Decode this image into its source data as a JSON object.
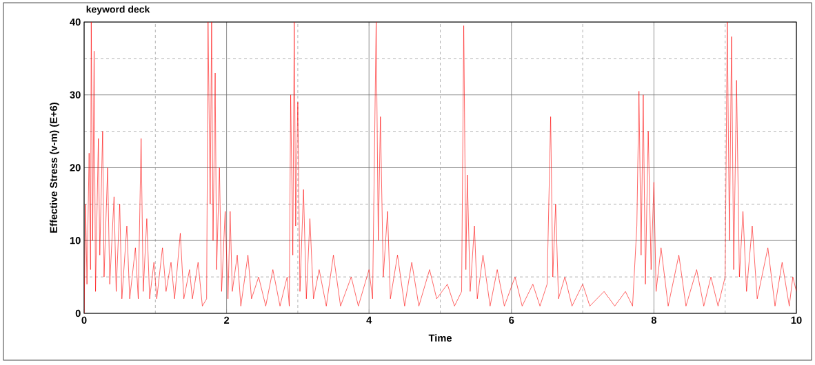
{
  "chart_data": {
    "type": "line",
    "title": "keyword deck",
    "xlabel": "Time",
    "ylabel": "Effective Stress (v-m) (E+6)",
    "xlim": [
      0,
      10
    ],
    "ylim": [
      0,
      40
    ],
    "xticks": [
      0,
      2,
      4,
      6,
      8,
      10
    ],
    "yticks": [
      0,
      10,
      20,
      30,
      40
    ],
    "grid": true,
    "series": [
      {
        "color": "#ff0000",
        "x": [
          0,
          0.02,
          0.04,
          0.07,
          0.09,
          0.1,
          0.12,
          0.14,
          0.16,
          0.2,
          0.22,
          0.26,
          0.28,
          0.33,
          0.36,
          0.42,
          0.45,
          0.5,
          0.53,
          0.6,
          0.64,
          0.72,
          0.76,
          0.8,
          0.83,
          0.88,
          0.92,
          0.98,
          1.02,
          1.1,
          1.15,
          1.22,
          1.27,
          1.35,
          1.4,
          1.48,
          1.52,
          1.6,
          1.66,
          1.72,
          1.74,
          1.77,
          1.79,
          1.81,
          1.84,
          1.86,
          1.9,
          1.93,
          1.98,
          2.02,
          2.05,
          2.08,
          2.15,
          2.2,
          2.3,
          2.35,
          2.45,
          2.55,
          2.65,
          2.75,
          2.85,
          2.88,
          2.9,
          2.93,
          2.95,
          2.97,
          3.0,
          3.03,
          3.08,
          3.12,
          3.17,
          3.22,
          3.3,
          3.4,
          3.5,
          3.6,
          3.75,
          3.85,
          4.0,
          4.05,
          4.1,
          4.13,
          4.16,
          4.2,
          4.26,
          4.3,
          4.4,
          4.5,
          4.6,
          4.7,
          4.85,
          4.95,
          5.1,
          5.2,
          5.3,
          5.33,
          5.36,
          5.38,
          5.42,
          5.48,
          5.52,
          5.6,
          5.7,
          5.8,
          5.9,
          6.05,
          6.15,
          6.3,
          6.4,
          6.5,
          6.55,
          6.58,
          6.62,
          6.66,
          6.75,
          6.85,
          7.0,
          7.1,
          7.3,
          7.45,
          7.6,
          7.7,
          7.76,
          7.79,
          7.82,
          7.85,
          7.88,
          7.92,
          7.96,
          8.0,
          8.03,
          8.1,
          8.2,
          8.35,
          8.45,
          8.6,
          8.7,
          8.8,
          8.9,
          9.0,
          9.03,
          9.06,
          9.09,
          9.12,
          9.16,
          9.2,
          9.25,
          9.3,
          9.38,
          9.45,
          9.6,
          9.7,
          9.8,
          9.9,
          9.95,
          10
        ],
        "values": [
          0,
          15,
          4,
          22,
          6,
          40,
          10,
          36,
          3,
          24,
          8,
          25,
          5,
          20,
          4,
          16,
          3,
          15,
          2,
          12,
          2,
          9,
          2,
          24,
          3,
          13,
          2,
          7,
          2,
          9,
          3,
          7,
          2,
          11,
          2,
          6,
          2,
          7,
          1,
          2,
          40,
          15,
          40,
          10,
          33,
          6,
          20,
          3,
          14,
          2,
          14,
          3,
          8,
          1,
          8,
          2,
          5,
          1,
          6,
          1,
          5,
          1,
          30,
          8,
          40,
          12,
          29,
          3,
          17,
          2,
          13,
          2,
          6,
          1,
          8,
          1,
          5,
          1,
          6,
          2,
          40,
          10,
          27,
          5,
          14,
          2,
          8,
          1,
          7,
          1,
          6,
          2,
          4,
          1,
          3,
          39.5,
          6,
          19,
          3,
          12,
          2,
          8,
          1,
          6,
          1,
          5,
          1,
          4,
          1,
          4,
          27,
          5,
          15,
          2,
          5,
          1,
          4,
          1,
          3,
          1,
          3,
          1,
          12,
          30.5,
          8,
          30,
          4,
          25,
          6,
          18,
          3,
          9,
          1,
          8,
          1,
          6,
          1,
          5,
          1,
          5,
          40,
          10,
          38,
          6,
          32,
          5,
          14,
          3,
          12,
          2,
          9,
          1,
          7,
          1,
          5,
          3
        ]
      }
    ]
  }
}
